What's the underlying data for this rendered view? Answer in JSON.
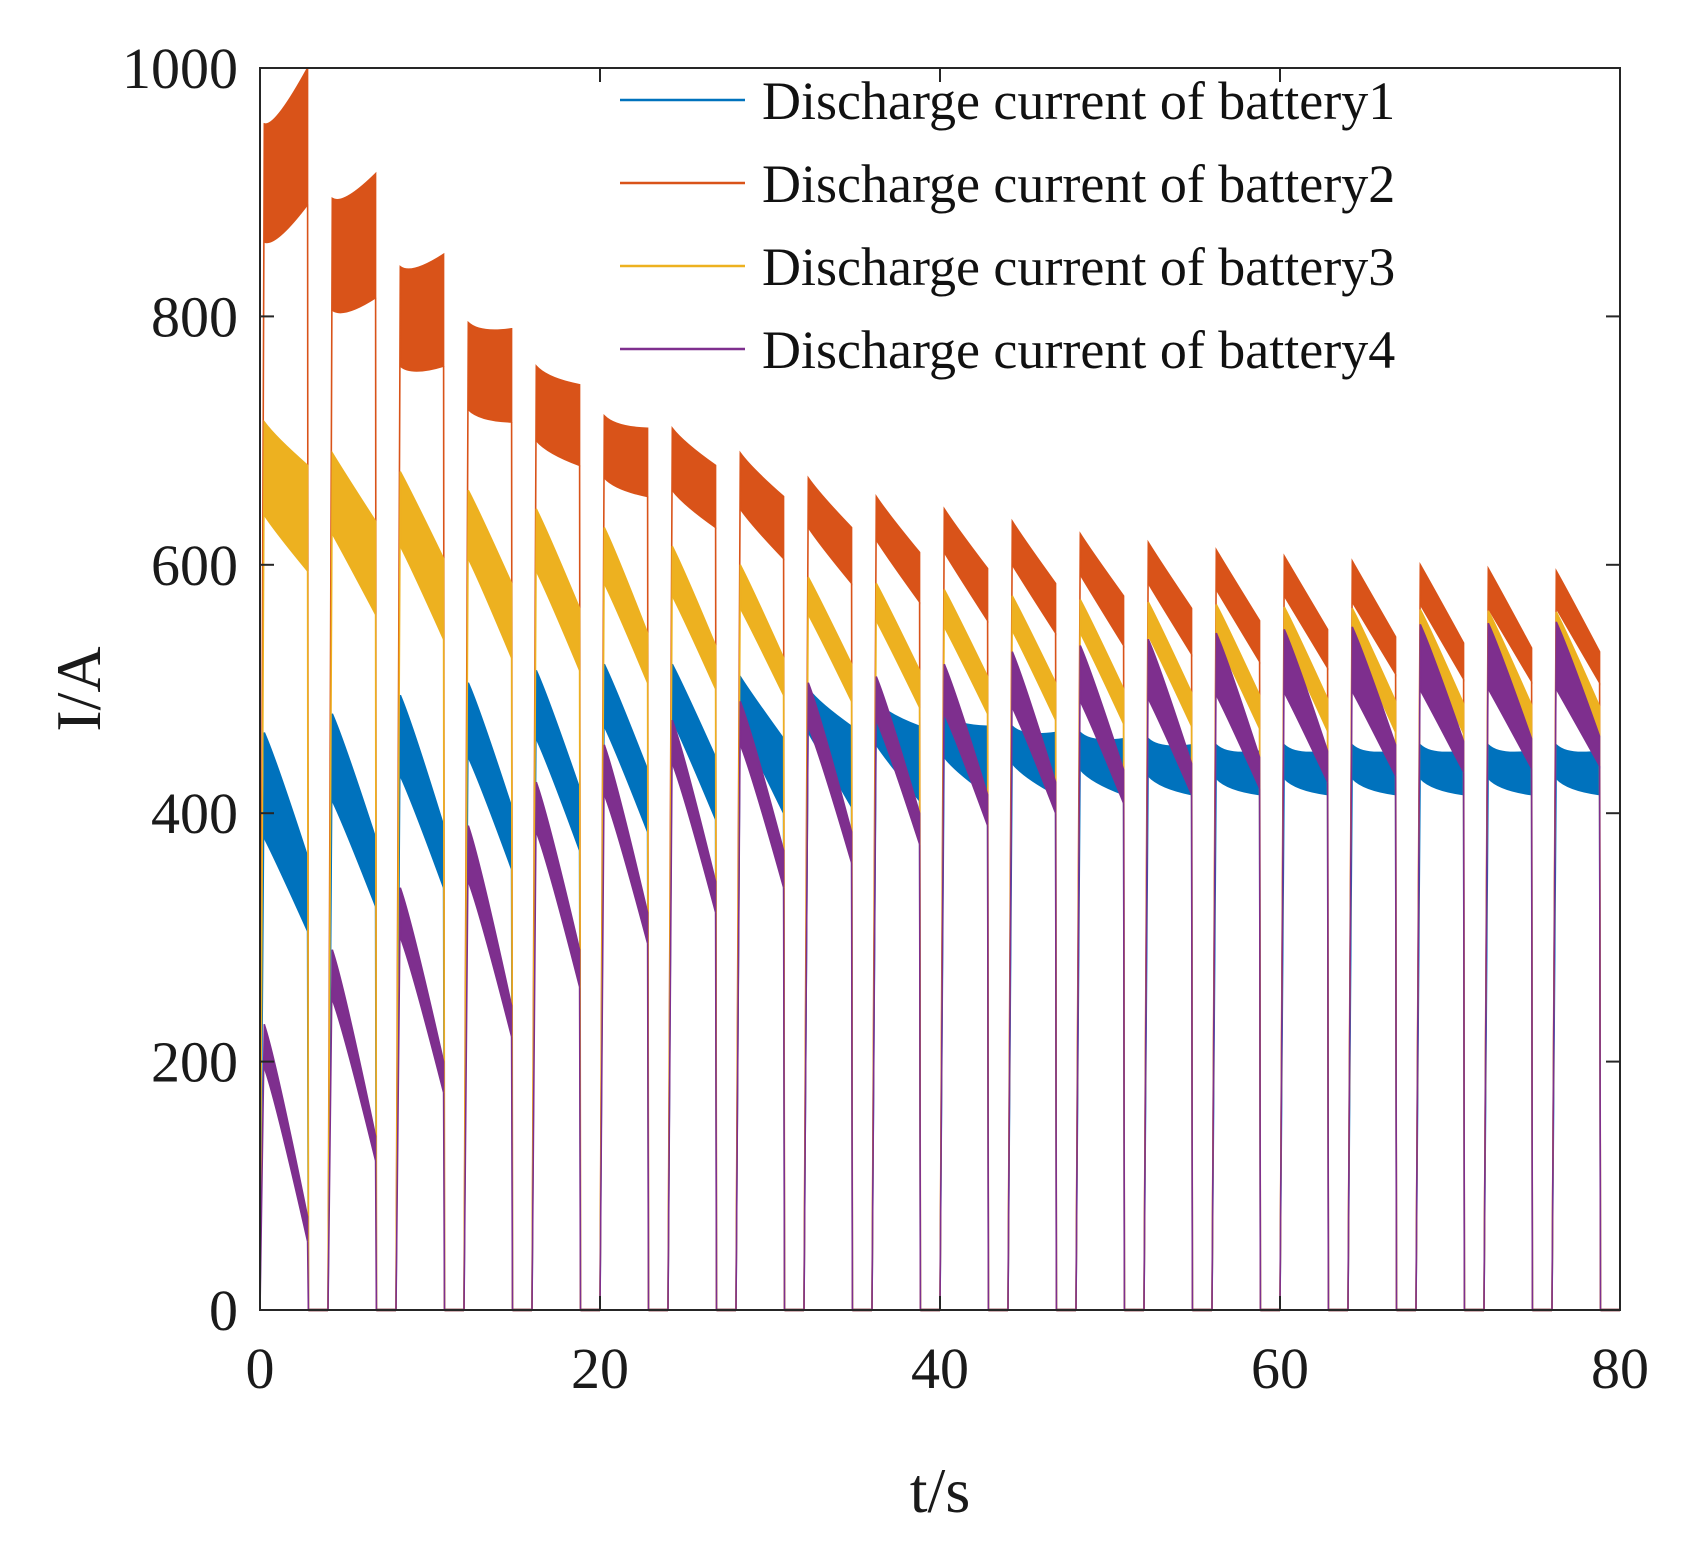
{
  "chart_data": {
    "type": "line",
    "title": "",
    "xlabel": "t/s",
    "ylabel": "I/A",
    "xlim": [
      0,
      80
    ],
    "ylim": [
      0,
      1000
    ],
    "xticks": [
      0,
      20,
      40,
      60,
      80
    ],
    "yticks": [
      0,
      200,
      400,
      600,
      800,
      1000
    ],
    "xtick_labels": [
      "0",
      "20",
      "40",
      "60",
      "80"
    ],
    "ytick_labels": [
      "0",
      "200",
      "400",
      "600",
      "800",
      "1000"
    ],
    "grid": false,
    "legend_position": "top-right",
    "pulse_starts": [
      0,
      4,
      8,
      12,
      16,
      20,
      24,
      28,
      32,
      36,
      40,
      44,
      48,
      52,
      56,
      60,
      64,
      68,
      72,
      76
    ],
    "pulse_end_offset": 2.8,
    "series": [
      {
        "name": "Discharge current of battery1",
        "color": "#0072BD",
        "band_start_top": [
          465,
          480,
          495,
          505,
          515,
          520,
          520,
          510,
          500,
          490,
          480,
          470,
          465,
          460,
          455,
          455,
          455,
          455,
          455,
          455
        ],
        "band_start_bottom": [
          380,
          410,
          430,
          445,
          460,
          470,
          475,
          470,
          465,
          455,
          445,
          440,
          435,
          430,
          428,
          428,
          428,
          428,
          428,
          428
        ],
        "band_end_top": [
          365,
          380,
          390,
          405,
          420,
          435,
          445,
          460,
          470,
          470,
          470,
          465,
          460,
          455,
          450,
          450,
          450,
          450,
          450,
          450
        ],
        "band_end_bottom": [
          305,
          325,
          340,
          355,
          370,
          385,
          395,
          400,
          405,
          410,
          415,
          415,
          415,
          415,
          415,
          415,
          415,
          415,
          415,
          415
        ]
      },
      {
        "name": "Discharge current of battery2",
        "color": "#D95319",
        "band_start_top": [
          955,
          895,
          840,
          795,
          760,
          720,
          710,
          690,
          670,
          655,
          645,
          635,
          625,
          618,
          612,
          607,
          603,
          600,
          597,
          595
        ],
        "band_start_bottom": [
          860,
          805,
          760,
          725,
          700,
          670,
          660,
          645,
          630,
          620,
          610,
          600,
          592,
          585,
          580,
          575,
          570,
          568,
          565,
          565
        ],
        "band_end_top": [
          1000,
          915,
          850,
          790,
          745,
          710,
          680,
          655,
          630,
          610,
          597,
          585,
          575,
          565,
          555,
          548,
          542,
          537,
          533,
          530
        ],
        "band_end_bottom": [
          890,
          815,
          760,
          715,
          680,
          655,
          630,
          605,
          585,
          570,
          555,
          545,
          535,
          528,
          522,
          517,
          512,
          508,
          506,
          505
        ]
      },
      {
        "name": "Discharge current of battery3",
        "color": "#EDB120",
        "band_start_top": [
          715,
          690,
          675,
          660,
          645,
          630,
          615,
          600,
          590,
          585,
          580,
          575,
          572,
          570,
          568,
          566,
          565,
          564,
          563,
          562
        ],
        "band_start_bottom": [
          640,
          625,
          615,
          605,
          595,
          585,
          575,
          565,
          560,
          555,
          550,
          547,
          545,
          543,
          541,
          540,
          540,
          539,
          538,
          538
        ],
        "band_end_top": [
          680,
          635,
          605,
          585,
          565,
          545,
          535,
          525,
          520,
          515,
          510,
          505,
          500,
          497,
          495,
          492,
          490,
          488,
          487,
          486
        ],
        "band_end_bottom": [
          595,
          560,
          540,
          525,
          515,
          505,
          500,
          495,
          490,
          485,
          480,
          475,
          472,
          470,
          468,
          466,
          465,
          464,
          463,
          462
        ]
      },
      {
        "name": "Discharge current of battery4",
        "color": "#7E2F8E",
        "band_start_top": [
          230,
          290,
          340,
          390,
          425,
          455,
          475,
          490,
          505,
          510,
          520,
          530,
          535,
          540,
          545,
          548,
          550,
          552,
          553,
          554
        ],
        "band_start_bottom": [
          195,
          250,
          300,
          345,
          385,
          415,
          440,
          455,
          470,
          475,
          480,
          485,
          490,
          492,
          495,
          497,
          498,
          499,
          500,
          500
        ],
        "band_end_top": [
          75,
          140,
          200,
          245,
          290,
          320,
          345,
          370,
          385,
          400,
          415,
          425,
          435,
          440,
          445,
          450,
          455,
          458,
          460,
          462
        ],
        "band_end_bottom": [
          55,
          120,
          175,
          220,
          260,
          295,
          320,
          340,
          360,
          375,
          390,
          400,
          408,
          415,
          420,
          425,
          430,
          433,
          436,
          438
        ]
      }
    ]
  }
}
